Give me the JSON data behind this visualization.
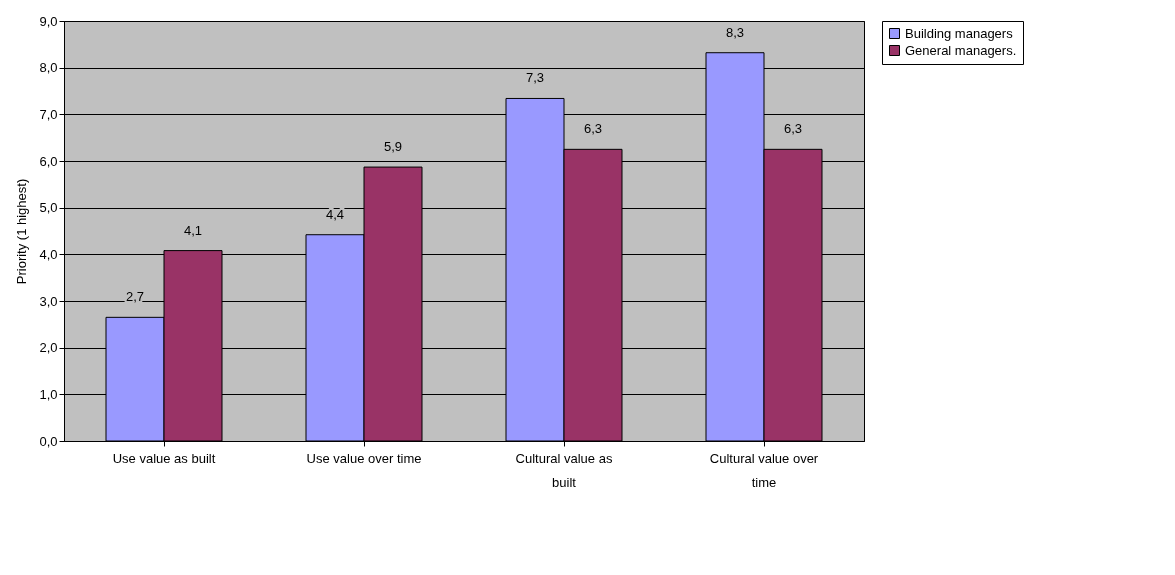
{
  "chart_data": {
    "type": "bar",
    "ylabel": "Priority (1 highest)",
    "categories": [
      "Use value as built",
      "Use value over time",
      "Cultural value as built",
      "Cultural value over time"
    ],
    "series": [
      {
        "name": "Building managers",
        "color": "#9999ff",
        "values": [
          2.65,
          4.42,
          7.34,
          8.32
        ],
        "value_labels": [
          "2,7",
          "4,4",
          "7,3",
          "8,3"
        ]
      },
      {
        "name": "General managers.",
        "color": "#993366",
        "values": [
          4.08,
          5.87,
          6.25,
          6.25
        ],
        "value_labels": [
          "4,1",
          "5,9",
          "6,3",
          "6,3"
        ]
      }
    ],
    "ylim": [
      0,
      9
    ],
    "yticks": [
      {
        "value": 0,
        "label": "0,0"
      },
      {
        "value": 1,
        "label": "1,0"
      },
      {
        "value": 2,
        "label": "2,0"
      },
      {
        "value": 3,
        "label": "3,0"
      },
      {
        "value": 4,
        "label": "4,0"
      },
      {
        "value": 5,
        "label": "5,0"
      },
      {
        "value": 6,
        "label": "6,0"
      },
      {
        "value": 7,
        "label": "7,0"
      },
      {
        "value": 8,
        "label": "8,0"
      },
      {
        "value": 9,
        "label": "9,0"
      }
    ],
    "grid": "y",
    "legend": "right"
  }
}
